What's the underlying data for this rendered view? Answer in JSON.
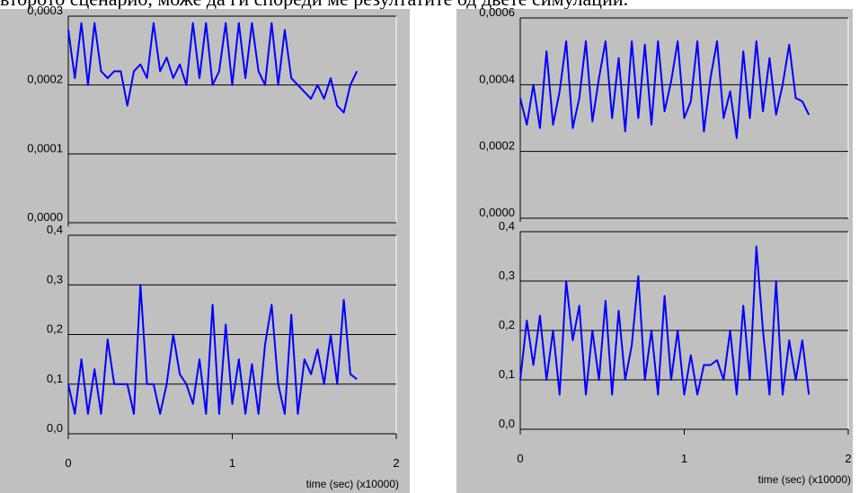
{
  "caption": "второто сценарио, може да ги спореди ме резултатите од двете симулации.",
  "chart_data": [
    {
      "type": "line",
      "color": "#0000ff",
      "grid": true,
      "xlim": [
        0,
        2
      ],
      "ylim": [
        0,
        0.0003
      ],
      "yticks": [
        {
          "value": 0,
          "label": "0,0000"
        },
        {
          "value": 0.0001,
          "label": "0,0001"
        },
        {
          "value": 0.0002,
          "label": "0,0002"
        },
        {
          "value": 0.0003,
          "label": "0,0003"
        }
      ],
      "x": [
        0,
        0.04,
        0.08,
        0.12,
        0.16,
        0.2,
        0.24,
        0.28,
        0.32,
        0.36,
        0.4,
        0.44,
        0.48,
        0.52,
        0.56,
        0.6,
        0.64,
        0.68,
        0.72,
        0.76,
        0.8,
        0.84,
        0.88,
        0.92,
        0.96,
        1,
        1.04,
        1.08,
        1.12,
        1.16,
        1.2,
        1.24,
        1.28,
        1.32,
        1.36,
        1.4,
        1.44,
        1.48,
        1.52,
        1.56,
        1.6,
        1.64,
        1.68,
        1.72,
        1.76
      ],
      "values": [
        0.00028,
        0.00021,
        0.00029,
        0.0002,
        0.00029,
        0.00022,
        0.00021,
        0.00022,
        0.00022,
        0.00017,
        0.00022,
        0.00023,
        0.00021,
        0.00029,
        0.00022,
        0.00024,
        0.00021,
        0.00023,
        0.0002,
        0.00029,
        0.00021,
        0.00029,
        0.0002,
        0.00022,
        0.00029,
        0.0002,
        0.00029,
        0.00021,
        0.00029,
        0.00022,
        0.0002,
        0.00029,
        0.0002,
        0.00028,
        0.00021,
        0.0002,
        0.00019,
        0.00018,
        0.0002,
        0.00018,
        0.00021,
        0.00017,
        0.00016,
        0.0002,
        0.00022
      ]
    },
    {
      "type": "line",
      "color": "#0000ff",
      "grid": true,
      "xlim": [
        0,
        2
      ],
      "xticks": [
        0,
        1,
        2
      ],
      "xlabel": "time (sec) (x10000)",
      "ylim": [
        0,
        0.4
      ],
      "yticks": [
        {
          "value": 0,
          "label": "0,0"
        },
        {
          "value": 0.1,
          "label": "0,1"
        },
        {
          "value": 0.2,
          "label": "0,2"
        },
        {
          "value": 0.3,
          "label": "0,3"
        },
        {
          "value": 0.4,
          "label": "0,4"
        }
      ],
      "x": [
        0,
        0.04,
        0.08,
        0.12,
        0.16,
        0.2,
        0.24,
        0.28,
        0.32,
        0.36,
        0.4,
        0.44,
        0.48,
        0.52,
        0.56,
        0.6,
        0.64,
        0.68,
        0.72,
        0.76,
        0.8,
        0.84,
        0.88,
        0.92,
        0.96,
        1,
        1.04,
        1.08,
        1.12,
        1.16,
        1.2,
        1.24,
        1.28,
        1.32,
        1.36,
        1.4,
        1.44,
        1.48,
        1.52,
        1.56,
        1.6,
        1.64,
        1.68,
        1.72,
        1.76
      ],
      "values": [
        0.1,
        0.04,
        0.15,
        0.04,
        0.13,
        0.04,
        0.19,
        0.1,
        0.1,
        0.1,
        0.04,
        0.3,
        0.1,
        0.1,
        0.04,
        0.1,
        0.2,
        0.12,
        0.1,
        0.06,
        0.15,
        0.04,
        0.26,
        0.04,
        0.22,
        0.06,
        0.15,
        0.04,
        0.14,
        0.04,
        0.18,
        0.26,
        0.1,
        0.04,
        0.24,
        0.04,
        0.15,
        0.12,
        0.17,
        0.1,
        0.2,
        0.1,
        0.27,
        0.12,
        0.11
      ]
    },
    {
      "type": "line",
      "color": "#0000ff",
      "grid": true,
      "xlim": [
        0,
        2
      ],
      "ylim": [
        0,
        0.0006
      ],
      "yticks": [
        {
          "value": 0,
          "label": "0,0000"
        },
        {
          "value": 0.0002,
          "label": "0,0002"
        },
        {
          "value": 0.0004,
          "label": "0,0004"
        },
        {
          "value": 0.0006,
          "label": "0,0006"
        }
      ],
      "x": [
        0,
        0.04,
        0.08,
        0.12,
        0.16,
        0.2,
        0.24,
        0.28,
        0.32,
        0.36,
        0.4,
        0.44,
        0.48,
        0.52,
        0.56,
        0.6,
        0.64,
        0.68,
        0.72,
        0.76,
        0.8,
        0.84,
        0.88,
        0.92,
        0.96,
        1,
        1.04,
        1.08,
        1.12,
        1.16,
        1.2,
        1.24,
        1.28,
        1.32,
        1.36,
        1.4,
        1.44,
        1.48,
        1.52,
        1.56,
        1.6,
        1.64,
        1.68,
        1.72,
        1.76
      ],
      "values": [
        0.00036,
        0.00028,
        0.0004,
        0.00027,
        0.0005,
        0.00028,
        0.00038,
        0.00053,
        0.00027,
        0.00036,
        0.00053,
        0.00029,
        0.00042,
        0.00053,
        0.0003,
        0.00048,
        0.00026,
        0.00053,
        0.0003,
        0.00052,
        0.00028,
        0.00053,
        0.00032,
        0.00041,
        0.00053,
        0.0003,
        0.00035,
        0.00053,
        0.00026,
        0.00042,
        0.00053,
        0.0003,
        0.00038,
        0.00024,
        0.0005,
        0.0003,
        0.00053,
        0.00032,
        0.00048,
        0.00031,
        0.0004,
        0.00052,
        0.00036,
        0.00035,
        0.00031
      ]
    },
    {
      "type": "line",
      "color": "#0000ff",
      "grid": true,
      "xlim": [
        0,
        2
      ],
      "xticks": [
        0,
        1,
        2
      ],
      "xlabel": "time (sec) (x10000)",
      "ylim": [
        0,
        0.4
      ],
      "yticks": [
        {
          "value": 0,
          "label": "0,0"
        },
        {
          "value": 0.1,
          "label": "0,1"
        },
        {
          "value": 0.2,
          "label": "0,2"
        },
        {
          "value": 0.3,
          "label": "0,3"
        },
        {
          "value": 0.4,
          "label": "0,4"
        }
      ],
      "x": [
        0,
        0.04,
        0.08,
        0.12,
        0.16,
        0.2,
        0.24,
        0.28,
        0.32,
        0.36,
        0.4,
        0.44,
        0.48,
        0.52,
        0.56,
        0.6,
        0.64,
        0.68,
        0.72,
        0.76,
        0.8,
        0.84,
        0.88,
        0.92,
        0.96,
        1,
        1.04,
        1.08,
        1.12,
        1.16,
        1.2,
        1.24,
        1.28,
        1.32,
        1.36,
        1.4,
        1.44,
        1.48,
        1.52,
        1.56,
        1.6,
        1.64,
        1.68,
        1.72,
        1.76
      ],
      "values": [
        0.1,
        0.22,
        0.13,
        0.23,
        0.1,
        0.2,
        0.07,
        0.3,
        0.18,
        0.25,
        0.07,
        0.2,
        0.1,
        0.26,
        0.07,
        0.24,
        0.1,
        0.17,
        0.31,
        0.1,
        0.2,
        0.07,
        0.27,
        0.1,
        0.2,
        0.07,
        0.15,
        0.07,
        0.13,
        0.13,
        0.14,
        0.1,
        0.2,
        0.07,
        0.25,
        0.1,
        0.37,
        0.2,
        0.07,
        0.3,
        0.07,
        0.18,
        0.1,
        0.18,
        0.07
      ]
    }
  ]
}
